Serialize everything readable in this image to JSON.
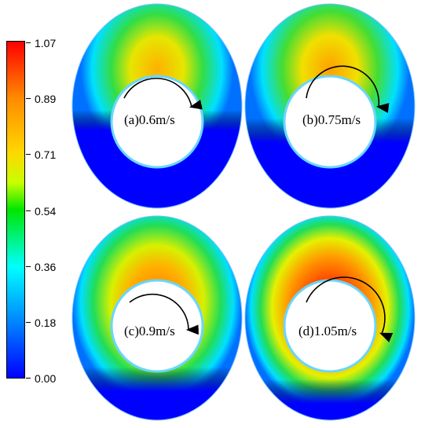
{
  "colorbar": {
    "ticks": [
      "1.07",
      "0.89",
      "0.71",
      "0.54",
      "0.36",
      "0.18",
      "0.00"
    ],
    "colors": [
      "#ff0000",
      "#ff8c00",
      "#ffd700",
      "#c8ff00",
      "#00e600",
      "#00ffff",
      "#0088ff",
      "#0000ff"
    ]
  },
  "panels": [
    {
      "label": "(a)0.6m/s"
    },
    {
      "label": "(b)0.75m/s"
    },
    {
      "label": "(c)0.9m/s"
    },
    {
      "label": "(d)1.05m/s"
    }
  ]
}
